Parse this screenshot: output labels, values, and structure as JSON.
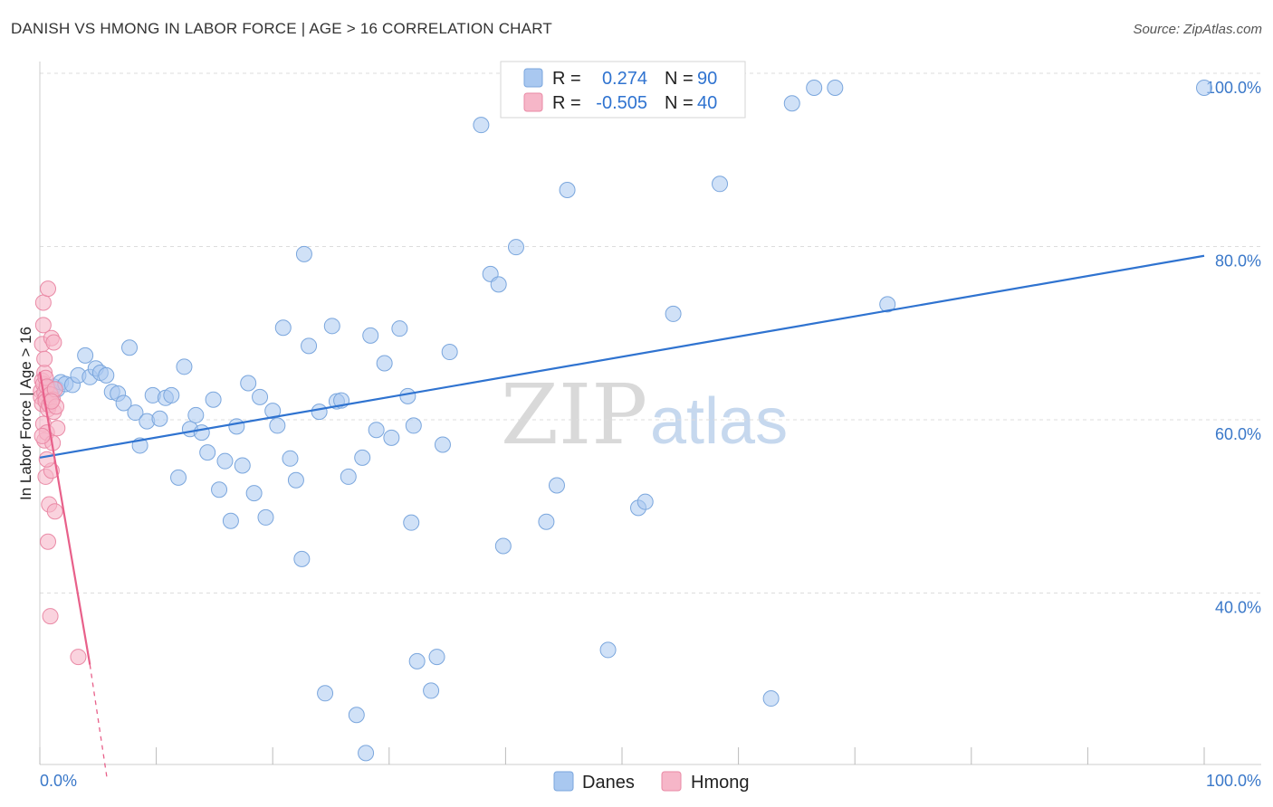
{
  "header": {
    "title": "DANISH VS HMONG IN LABOR FORCE | AGE > 16 CORRELATION CHART",
    "source": "Source: ZipAtlas.com"
  },
  "watermark": {
    "part1": "ZIP",
    "part2": "atlas"
  },
  "colors": {
    "danes_fill": "#a9c8f0",
    "danes_stroke": "#7aa6dd",
    "danes_line": "#2f73d0",
    "hmong_fill": "#f6b6c8",
    "hmong_stroke": "#ea8aa6",
    "hmong_line": "#e8608a",
    "tick_text": "#3a78c9",
    "grid": "#dddddd"
  },
  "legend_top": {
    "rows": [
      {
        "r_label": "R =",
        "r_value": "0.274",
        "n_label": "N =",
        "n_value": "90"
      },
      {
        "r_label": "R =",
        "r_value": "-0.505",
        "n_label": "N =",
        "n_value": "40"
      }
    ]
  },
  "legend_bottom": {
    "danes": "Danes",
    "hmong": "Hmong"
  },
  "chart_data": {
    "type": "scatter",
    "title": "DANISH VS HMONG IN LABOR FORCE | AGE > 16 CORRELATION CHART",
    "xlabel": "",
    "ylabel": "In Labor Force | Age > 16",
    "xlim": [
      0,
      100
    ],
    "ylim": [
      20,
      102
    ],
    "x_tick_labels": {
      "min": "0.0%",
      "max": "100.0%"
    },
    "y_ticks": [
      {
        "value": 40,
        "label": "40.0%"
      },
      {
        "value": 60,
        "label": "60.0%"
      },
      {
        "value": 80,
        "label": "80.0%"
      },
      {
        "value": 100,
        "label": "100.0%"
      }
    ],
    "series": [
      {
        "name": "Danes",
        "R": 0.274,
        "N": 90,
        "trend": {
          "x0": 0,
          "y0": 57.3,
          "x1": 100,
          "y1": 80.6
        },
        "points": [
          [
            0.5,
            64.8
          ],
          [
            0.8,
            65.3
          ],
          [
            1.0,
            64.5
          ],
          [
            1.2,
            65.5
          ],
          [
            1.5,
            65.2
          ],
          [
            1.8,
            66.0
          ],
          [
            2.2,
            65.8
          ],
          [
            2.8,
            65.7
          ],
          [
            3.3,
            66.8
          ],
          [
            3.9,
            69.1
          ],
          [
            4.3,
            66.6
          ],
          [
            4.8,
            67.6
          ],
          [
            5.2,
            67.1
          ],
          [
            5.7,
            66.8
          ],
          [
            6.2,
            64.9
          ],
          [
            6.7,
            64.7
          ],
          [
            7.2,
            63.6
          ],
          [
            7.7,
            70.0
          ],
          [
            8.2,
            62.5
          ],
          [
            8.6,
            58.7
          ],
          [
            9.2,
            61.5
          ],
          [
            9.7,
            64.5
          ],
          [
            10.3,
            61.8
          ],
          [
            10.8,
            64.2
          ],
          [
            11.3,
            64.5
          ],
          [
            11.9,
            55.0
          ],
          [
            12.4,
            67.8
          ],
          [
            12.9,
            60.6
          ],
          [
            13.4,
            62.2
          ],
          [
            13.9,
            60.2
          ],
          [
            14.4,
            57.9
          ],
          [
            14.9,
            64.0
          ],
          [
            15.4,
            53.6
          ],
          [
            15.9,
            56.9
          ],
          [
            16.4,
            50.0
          ],
          [
            16.9,
            60.9
          ],
          [
            17.4,
            56.4
          ],
          [
            17.9,
            65.9
          ],
          [
            18.4,
            53.2
          ],
          [
            18.9,
            64.3
          ],
          [
            19.4,
            50.4
          ],
          [
            20.0,
            62.7
          ],
          [
            20.4,
            61.0
          ],
          [
            20.9,
            72.3
          ],
          [
            21.5,
            57.2
          ],
          [
            22.0,
            54.7
          ],
          [
            22.5,
            45.6
          ],
          [
            22.7,
            80.8
          ],
          [
            23.1,
            70.2
          ],
          [
            24.0,
            62.6
          ],
          [
            24.5,
            30.1
          ],
          [
            25.1,
            72.5
          ],
          [
            25.5,
            63.8
          ],
          [
            25.9,
            63.9
          ],
          [
            26.5,
            55.1
          ],
          [
            27.2,
            27.6
          ],
          [
            27.7,
            57.3
          ],
          [
            28.0,
            23.2
          ],
          [
            28.4,
            71.4
          ],
          [
            28.9,
            60.5
          ],
          [
            29.6,
            68.2
          ],
          [
            30.2,
            59.6
          ],
          [
            30.9,
            72.2
          ],
          [
            31.6,
            64.4
          ],
          [
            31.9,
            49.8
          ],
          [
            32.4,
            33.8
          ],
          [
            33.6,
            30.4
          ],
          [
            34.1,
            34.3
          ],
          [
            34.6,
            58.8
          ],
          [
            35.2,
            69.5
          ],
          [
            37.9,
            95.7
          ],
          [
            38.7,
            78.5
          ],
          [
            39.4,
            77.3
          ],
          [
            39.8,
            47.1
          ],
          [
            40.9,
            81.6
          ],
          [
            43.5,
            49.9
          ],
          [
            44.4,
            54.1
          ],
          [
            45.3,
            88.2
          ],
          [
            48.8,
            35.1
          ],
          [
            51.4,
            51.5
          ],
          [
            52.0,
            52.2
          ],
          [
            54.4,
            73.9
          ],
          [
            58.4,
            88.9
          ],
          [
            62.8,
            29.5
          ],
          [
            64.6,
            98.2
          ],
          [
            66.5,
            100.0
          ],
          [
            68.3,
            100.0
          ],
          [
            72.8,
            75.0
          ],
          [
            100.0,
            100.0
          ],
          [
            32.1,
            61.0
          ]
        ]
      },
      {
        "name": "Hmong",
        "R": -0.505,
        "N": 40,
        "trend": {
          "x0": 0,
          "y0": 67.2,
          "x1": 4.3,
          "y1": 33.4
        },
        "trend_dashed": {
          "x0": 4.3,
          "y0": 33.4,
          "x1": 5.8,
          "y1": 20.0
        },
        "points": [
          [
            0.1,
            65.0
          ],
          [
            0.1,
            64.3
          ],
          [
            0.2,
            66.2
          ],
          [
            0.2,
            63.5
          ],
          [
            0.2,
            70.4
          ],
          [
            0.3,
            72.6
          ],
          [
            0.3,
            75.2
          ],
          [
            0.3,
            65.8
          ],
          [
            0.3,
            61.2
          ],
          [
            0.4,
            67.1
          ],
          [
            0.4,
            64.8
          ],
          [
            0.4,
            59.3
          ],
          [
            0.5,
            64.2
          ],
          [
            0.5,
            63.8
          ],
          [
            0.5,
            66.5
          ],
          [
            0.5,
            55.1
          ],
          [
            0.6,
            65.5
          ],
          [
            0.6,
            60.2
          ],
          [
            0.7,
            62.9
          ],
          [
            0.7,
            76.8
          ],
          [
            0.7,
            47.6
          ],
          [
            0.8,
            51.9
          ],
          [
            0.8,
            63.4
          ],
          [
            0.9,
            64.6
          ],
          [
            0.9,
            39.0
          ],
          [
            1.0,
            71.1
          ],
          [
            1.0,
            55.8
          ],
          [
            1.1,
            59.0
          ],
          [
            1.1,
            64.0
          ],
          [
            1.2,
            70.6
          ],
          [
            1.2,
            62.6
          ],
          [
            1.3,
            51.1
          ],
          [
            1.3,
            65.2
          ],
          [
            1.4,
            63.2
          ],
          [
            1.5,
            60.7
          ],
          [
            0.2,
            59.8
          ],
          [
            0.6,
            57.1
          ],
          [
            1.0,
            63.8
          ],
          [
            0.4,
            68.7
          ],
          [
            3.3,
            34.3
          ]
        ]
      }
    ]
  }
}
